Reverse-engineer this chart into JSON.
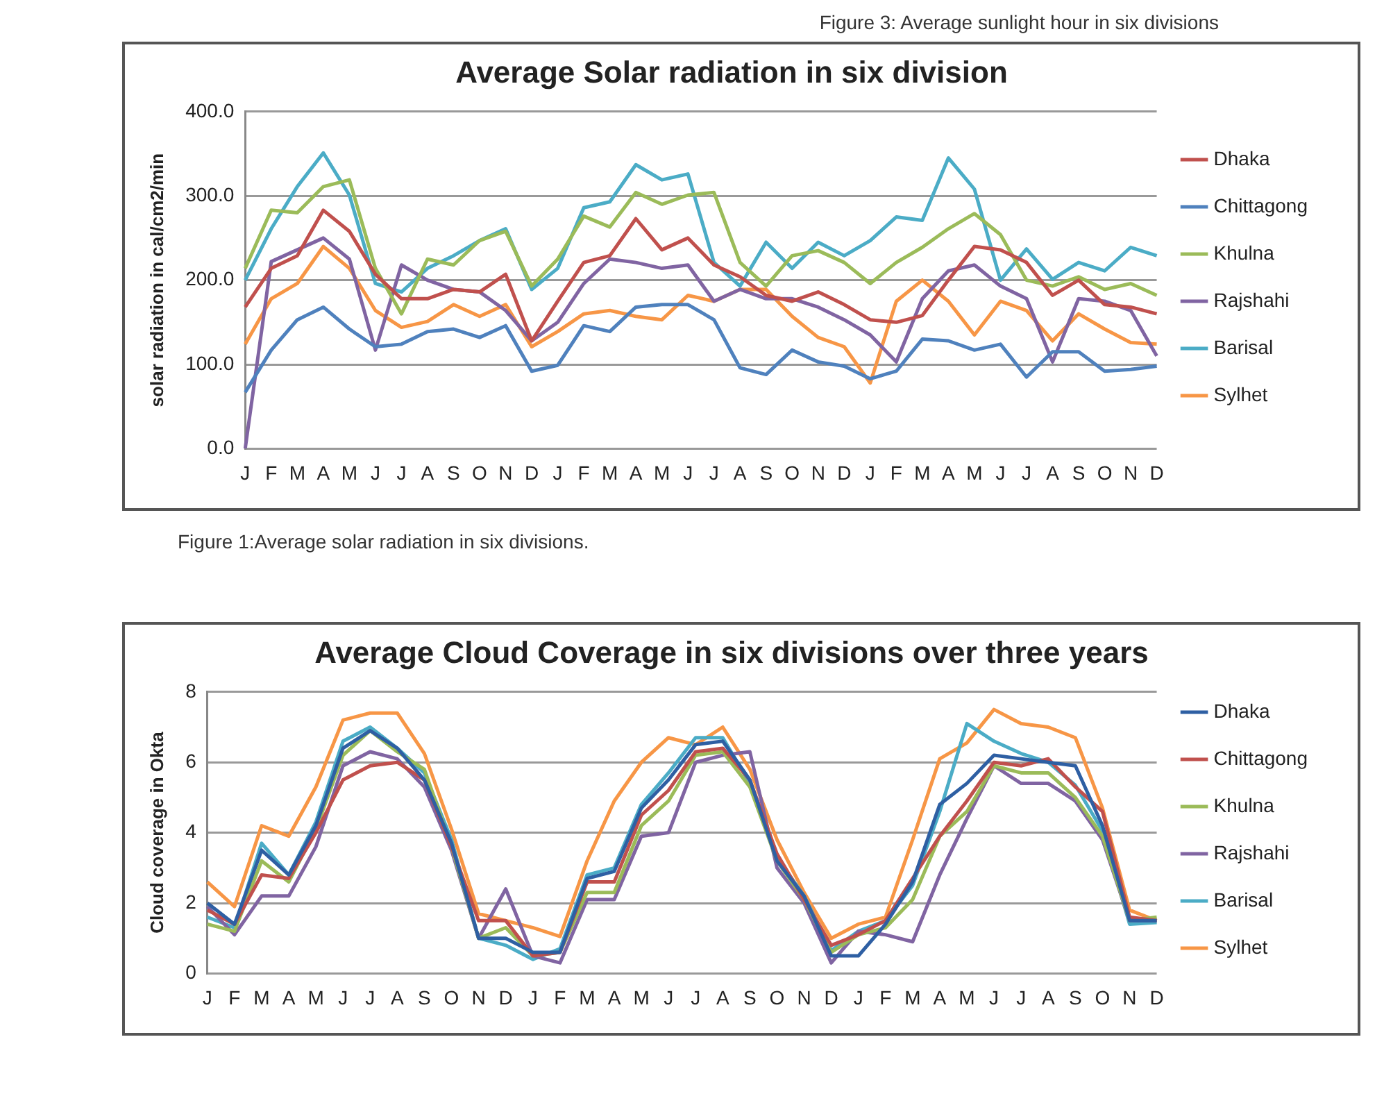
{
  "chart_data": [
    {
      "type": "line",
      "title": "Average Solar radiation in six division",
      "ylabel": "solar radiation in cal/cm2/min",
      "annotations": [
        "Figure 3: Average sunlight hour in six divisions",
        "Figure 1:Average solar radiation in six divisions."
      ],
      "categories": [
        "J",
        "F",
        "M",
        "A",
        "M",
        "J",
        "J",
        "A",
        "S",
        "O",
        "N",
        "D",
        "J",
        "F",
        "M",
        "A",
        "M",
        "J",
        "J",
        "A",
        "S",
        "O",
        "N",
        "D",
        "J",
        "F",
        "M",
        "A",
        "M",
        "J",
        "J",
        "A",
        "S",
        "O",
        "N",
        "D"
      ],
      "series": [
        {
          "name": "Dhaka",
          "color": "#c0504d",
          "values": [
            168,
            214,
            229,
            283,
            258,
            207,
            178,
            178,
            189,
            186,
            207,
            128,
            175,
            221,
            229,
            273,
            236,
            250,
            218,
            204,
            182,
            175,
            186,
            171,
            153,
            150,
            158,
            200,
            240,
            236,
            221,
            182,
            200,
            171,
            168,
            160
          ]
        },
        {
          "name": "Chittagong",
          "color": "#4f81bd",
          "values": [
            67,
            117,
            153,
            168,
            142,
            121,
            124,
            139,
            142,
            132,
            146,
            92,
            99,
            146,
            139,
            168,
            171,
            171,
            153,
            96,
            88,
            117,
            103,
            98,
            83,
            92,
            130,
            128,
            117,
            124,
            85,
            115,
            115,
            92,
            94,
            98
          ]
        },
        {
          "name": "Khulna",
          "color": "#9bbb59",
          "values": [
            214,
            283,
            280,
            311,
            319,
            214,
            160,
            225,
            218,
            247,
            258,
            193,
            225,
            276,
            263,
            304,
            290,
            301,
            304,
            221,
            193,
            229,
            235,
            221,
            196,
            221,
            239,
            261,
            279,
            254,
            200,
            193,
            204,
            189,
            196,
            182
          ]
        },
        {
          "name": "Rajshahi",
          "color": "#8064a2",
          "values": [
            0,
            222,
            236,
            250,
            225,
            117,
            218,
            200,
            189,
            186,
            164,
            128,
            150,
            196,
            225,
            221,
            214,
            218,
            175,
            189,
            178,
            178,
            168,
            153,
            135,
            103,
            178,
            211,
            218,
            193,
            178,
            103,
            178,
            175,
            164,
            110
          ]
        },
        {
          "name": "Barisal",
          "color": "#4bacc6",
          "values": [
            200,
            261,
            311,
            351,
            301,
            196,
            186,
            214,
            229,
            247,
            261,
            189,
            214,
            286,
            293,
            337,
            319,
            326,
            221,
            193,
            245,
            214,
            245,
            229,
            247,
            275,
            271,
            345,
            308,
            200,
            237,
            201,
            221,
            211,
            239,
            229
          ]
        },
        {
          "name": "Sylhet",
          "color": "#f79646",
          "values": [
            124,
            178,
            196,
            240,
            214,
            164,
            144,
            151,
            171,
            157,
            171,
            121,
            139,
            160,
            164,
            157,
            153,
            182,
            175,
            189,
            189,
            157,
            132,
            121,
            78,
            175,
            200,
            175,
            135,
            175,
            164,
            128,
            160,
            142,
            126,
            124
          ]
        }
      ],
      "ylim": [
        0,
        400
      ],
      "yticks": [
        {
          "value": 0,
          "label": "0.0"
        },
        {
          "value": 100,
          "label": "100.0"
        },
        {
          "value": 200,
          "label": "200.0"
        },
        {
          "value": 300,
          "label": "300.0"
        },
        {
          "value": 400,
          "label": "400.0"
        }
      ],
      "grid": "y",
      "legend": "right",
      "marker": "none"
    },
    {
      "type": "line",
      "title": "Average Cloud Coverage in six divisions over three years",
      "ylabel": "Cloud coverage in Okta",
      "categories": [
        "J",
        "F",
        "M",
        "A",
        "M",
        "J",
        "J",
        "A",
        "S",
        "O",
        "N",
        "D",
        "J",
        "F",
        "M",
        "A",
        "M",
        "J",
        "J",
        "A",
        "S",
        "O",
        "N",
        "D",
        "J",
        "F",
        "M",
        "A",
        "M",
        "J",
        "J",
        "A",
        "S",
        "O",
        "N",
        "D"
      ],
      "series": [
        {
          "name": "Dhaka",
          "color": "#2e5fa3",
          "values": [
            2.0,
            1.4,
            3.5,
            2.8,
            4.2,
            6.4,
            6.9,
            6.4,
            5.5,
            3.7,
            1.0,
            1.0,
            0.6,
            0.6,
            2.7,
            2.9,
            4.7,
            5.5,
            6.5,
            6.6,
            5.5,
            3.2,
            2.2,
            0.5,
            0.5,
            1.4,
            2.6,
            4.8,
            5.4,
            6.2,
            6.1,
            6.0,
            5.9,
            4.2,
            1.5,
            1.5
          ]
        },
        {
          "name": "Chittagong",
          "color": "#c0504d",
          "values": [
            1.8,
            1.4,
            2.8,
            2.7,
            4.0,
            5.5,
            5.9,
            6.0,
            5.5,
            3.6,
            1.5,
            1.5,
            0.5,
            0.6,
            2.6,
            2.6,
            4.5,
            5.2,
            6.3,
            6.4,
            5.5,
            3.4,
            2.1,
            0.8,
            1.1,
            1.5,
            2.7,
            3.9,
            4.9,
            6.0,
            5.9,
            6.1,
            5.3,
            4.6,
            1.6,
            1.5
          ]
        },
        {
          "name": "Khulna",
          "color": "#9bbb59",
          "values": [
            1.4,
            1.2,
            3.2,
            2.6,
            4.1,
            6.2,
            6.9,
            6.3,
            5.8,
            3.6,
            1.0,
            1.3,
            0.5,
            0.6,
            2.3,
            2.3,
            4.2,
            4.9,
            6.2,
            6.3,
            5.3,
            3.2,
            2.1,
            0.6,
            1.1,
            1.3,
            2.1,
            3.9,
            4.6,
            5.9,
            5.7,
            5.7,
            5.0,
            3.9,
            1.5,
            1.6
          ]
        },
        {
          "name": "Rajshahi",
          "color": "#8064a2",
          "values": [
            1.9,
            1.1,
            2.2,
            2.2,
            3.6,
            5.9,
            6.3,
            6.1,
            5.3,
            3.5,
            1.0,
            2.4,
            0.5,
            0.3,
            2.1,
            2.1,
            3.9,
            4.0,
            6.0,
            6.2,
            6.3,
            3.0,
            2.0,
            0.3,
            1.2,
            1.1,
            0.9,
            2.8,
            4.4,
            5.9,
            5.4,
            5.4,
            4.9,
            3.8,
            1.5,
            1.5
          ]
        },
        {
          "name": "Barisal",
          "color": "#4bacc6",
          "values": [
            1.6,
            1.3,
            3.7,
            2.8,
            4.3,
            6.6,
            7.0,
            6.4,
            5.7,
            3.8,
            1.0,
            0.8,
            0.4,
            0.7,
            2.8,
            3.0,
            4.8,
            5.7,
            6.7,
            6.7,
            5.4,
            3.3,
            2.2,
            0.65,
            1.2,
            1.5,
            2.5,
            4.6,
            7.1,
            6.6,
            6.25,
            6.0,
            5.35,
            4.05,
            1.4,
            1.45
          ]
        },
        {
          "name": "Sylhet",
          "color": "#f79646",
          "values": [
            2.6,
            1.9,
            4.2,
            3.9,
            5.3,
            7.2,
            7.4,
            7.4,
            6.25,
            4.1,
            1.7,
            1.5,
            1.3,
            1.05,
            3.2,
            4.9,
            6.0,
            6.7,
            6.5,
            7.0,
            5.8,
            3.8,
            2.3,
            1.0,
            1.4,
            1.6,
            3.8,
            6.1,
            6.55,
            7.5,
            7.1,
            7.0,
            6.7,
            4.7,
            1.8,
            1.5
          ]
        }
      ],
      "ylim": [
        0,
        8
      ],
      "yticks": [
        0,
        2,
        4,
        6,
        8
      ],
      "grid": "y",
      "legend": "right",
      "marker": "none"
    }
  ]
}
